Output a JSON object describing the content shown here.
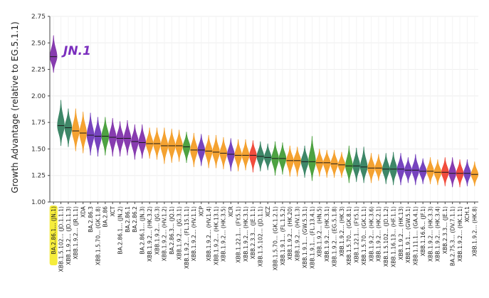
{
  "chart_data": {
    "type": "violin",
    "ylabel": "Growth Advantage (relative to EG.5.1.1)",
    "ylim": [
      1.0,
      2.75
    ],
    "yticks": [
      1.0,
      1.25,
      1.5,
      1.75,
      2.0,
      2.25,
      2.5,
      2.75
    ],
    "ytick_labels": [
      "1.00",
      "1.25",
      "1.50",
      "1.75",
      "2.00",
      "2.25",
      "2.50",
      "2.75"
    ],
    "grid": true,
    "annotation": {
      "text": "JN.1",
      "color": "#7b2fbe",
      "style": "handwritten"
    },
    "highlight": {
      "label": "BA.2.86.1... (JN.1)",
      "color": "#f5ec3c"
    },
    "categories": [
      "BA.2.86.1... (JN.1)",
      "XBB.1.5.102... (JD.1.1.1)",
      "XBB.1.9.2... (JD.1.1.3)",
      "XBB.1.9.2... (JR.1.1)",
      "XDA",
      "BA.2.86.3",
      "XBB.1.5.70... (GK.1.8)",
      "BA.2.86",
      "XCT",
      "BA.2.86.1... (JN.2)",
      "BA.2.86.1",
      "BA.2.86.2",
      "BA.2.86.1... (JN.3)",
      "XBB.1.9.2... (HK.3.2)",
      "XBB.1.9.2... (JG.3)",
      "XBB.1.9.2... (HV.1.2)",
      "BA.2.86.3... (JQ.1)",
      "XBB.1.9.2... (JG.3.1)",
      "XBB.1.9.2... (FL.15.1.1)",
      "XBB.1.9.2... (HV.1.1)",
      "XCP",
      "XBB.1.9.2... (HV.1.4)",
      "XBB.1.9.2... (HK.13.1)",
      "XBB.1.9.2... (HK.3.5)",
      "XCR",
      "XBB.1.22.1... (FY.5.1)",
      "XBB.1.9.2... (HK.3.1)",
      "XBB.2.3.3... (JE.1.1)",
      "XBB.1.5.102... (JD.1.1)",
      "XCZ",
      "XBB.1.5.70... (GK.1.2.1)",
      "XBB.1.9.1... (FL.1.5.2)",
      "XBB.1.9.2... (HK.20)",
      "XBB.1.9.2... (HV.1.3)",
      "XBB.1.9.1... (GW.5.3.1)",
      "XBB.1.9.1... (FL.13.4.1)",
      "XBB.1.9.2... (HN.5)",
      "XBB.1.9.2... (HK.3.1)",
      "XBB.1.9.2... (EG.5.1.8)",
      "XBB.1.9.2... (HK.3)",
      "XBB.1.5.70... (GK.8.1)",
      "XBB.1.22.1... (FY.5.1)",
      "XBB.1.5.70... (GK.1.1)",
      "XBB.1.9.2... (HK.3.6)",
      "XBB.1.9.2... (HK.2.1)",
      "XBB.1.5.102... (JD.1.2)",
      "XBB.1.16.13... (HF.1.1)",
      "XBB.1.9.2... (HK.13)",
      "XBB.1.9.1... (GW.5.1)",
      "XBB.1.11.1... (GA.4.1)",
      "XBB.1.16.6... (JF.1)",
      "XBB.1.9.2... (HK.3.3)",
      "XBB.1.9.2... (HK.3.4)",
      "XBB.2.3.3... (JE.1)",
      "BA.2.75.3... (DV.7.1.1)",
      "XBB.1.9.2... (HK.1.1)",
      "XCH.1",
      "XBB.1.9.2... (HK.8)"
    ],
    "series": [
      {
        "medians": [
          2.37,
          1.72,
          1.7,
          1.67,
          1.65,
          1.63,
          1.62,
          1.62,
          1.61,
          1.6,
          1.6,
          1.57,
          1.56,
          1.55,
          1.55,
          1.53,
          1.53,
          1.53,
          1.52,
          1.49,
          1.49,
          1.48,
          1.47,
          1.46,
          1.45,
          1.44,
          1.44,
          1.44,
          1.43,
          1.42,
          1.41,
          1.41,
          1.39,
          1.39,
          1.38,
          1.38,
          1.37,
          1.37,
          1.36,
          1.35,
          1.34,
          1.34,
          1.33,
          1.32,
          1.32,
          1.31,
          1.31,
          1.31,
          1.3,
          1.3,
          1.29,
          1.29,
          1.28,
          1.28,
          1.27,
          1.27,
          1.27,
          1.26
        ],
        "ranges": [
          [
            2.22,
            2.57
          ],
          [
            1.53,
            1.96
          ],
          [
            1.52,
            1.88
          ],
          [
            1.48,
            1.88
          ],
          [
            1.46,
            1.85
          ],
          [
            1.44,
            1.84
          ],
          [
            1.43,
            1.8
          ],
          [
            1.44,
            1.8
          ],
          [
            1.43,
            1.79
          ],
          [
            1.43,
            1.76
          ],
          [
            1.44,
            1.77
          ],
          [
            1.4,
            1.73
          ],
          [
            1.41,
            1.73
          ],
          [
            1.41,
            1.7
          ],
          [
            1.4,
            1.7
          ],
          [
            1.36,
            1.7
          ],
          [
            1.37,
            1.69
          ],
          [
            1.38,
            1.68
          ],
          [
            1.37,
            1.66
          ],
          [
            1.33,
            1.65
          ],
          [
            1.34,
            1.64
          ],
          [
            1.32,
            1.63
          ],
          [
            1.32,
            1.63
          ],
          [
            1.31,
            1.61
          ],
          [
            1.29,
            1.6
          ],
          [
            1.29,
            1.59
          ],
          [
            1.3,
            1.59
          ],
          [
            1.28,
            1.58
          ],
          [
            1.29,
            1.57
          ],
          [
            1.3,
            1.55
          ],
          [
            1.25,
            1.57
          ],
          [
            1.26,
            1.56
          ],
          [
            1.24,
            1.53
          ],
          [
            1.24,
            1.52
          ],
          [
            1.23,
            1.53
          ],
          [
            1.2,
            1.62
          ],
          [
            1.24,
            1.5
          ],
          [
            1.23,
            1.49
          ],
          [
            1.23,
            1.49
          ],
          [
            1.23,
            1.47
          ],
          [
            1.18,
            1.53
          ],
          [
            1.19,
            1.51
          ],
          [
            1.18,
            1.52
          ],
          [
            1.18,
            1.46
          ],
          [
            1.2,
            1.45
          ],
          [
            1.17,
            1.46
          ],
          [
            1.16,
            1.47
          ],
          [
            1.16,
            1.46
          ],
          [
            1.18,
            1.42
          ],
          [
            1.16,
            1.45
          ],
          [
            1.17,
            1.41
          ],
          [
            1.17,
            1.42
          ],
          [
            1.16,
            1.4
          ],
          [
            1.15,
            1.42
          ],
          [
            1.14,
            1.42
          ],
          [
            1.14,
            1.4
          ],
          [
            1.15,
            1.4
          ],
          [
            1.15,
            1.38
          ]
        ],
        "colors": [
          "#7d2ba8",
          "#2e7d5b",
          "#2e7d5b",
          "#f39a20",
          "#f39a20",
          "#6a34b8",
          "#6a34b8",
          "#3f9a32",
          "#7d2ba8",
          "#7d2ba8",
          "#7d2ba8",
          "#7d2ba8",
          "#7d2ba8",
          "#f39a20",
          "#f39a20",
          "#f39a20",
          "#f39a20",
          "#f39a20",
          "#3f9a32",
          "#f39a20",
          "#6a34b8",
          "#f39a20",
          "#f39a20",
          "#f39a20",
          "#6a34b8",
          "#f39a20",
          "#f39a20",
          "#f03e2c",
          "#2e7d5b",
          "#2e7d5b",
          "#3f9a32",
          "#3f9a32",
          "#f39a20",
          "#f39a20",
          "#2e7d5b",
          "#3f9a32",
          "#f39a20",
          "#f39a20",
          "#f39a20",
          "#f39a20",
          "#3f9a32",
          "#2e7d5b",
          "#2e7d5b",
          "#f39a20",
          "#f39a20",
          "#2e7d5b",
          "#2e7d5b",
          "#6a34b8",
          "#6a34b8",
          "#6a34b8",
          "#6a34b8",
          "#f39a20",
          "#f39a20",
          "#f03e2c",
          "#7d2ba8",
          "#f03e2c",
          "#6a34b8",
          "#f39a20"
        ]
      }
    ]
  }
}
